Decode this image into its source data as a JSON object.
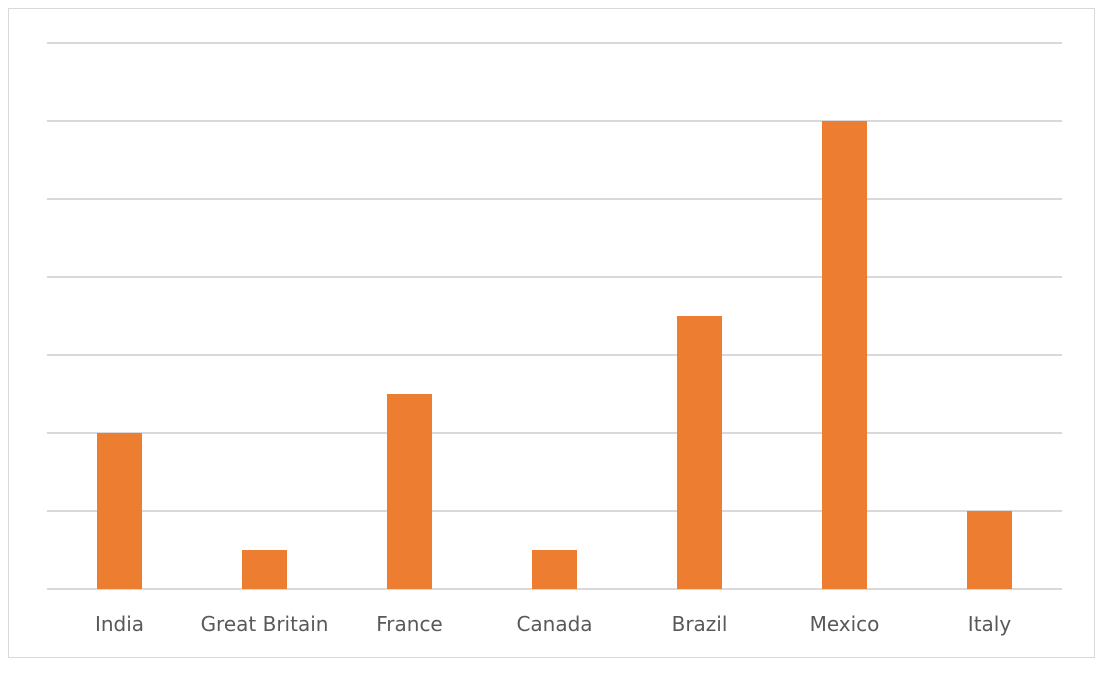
{
  "chart_data": {
    "type": "bar",
    "categories": [
      "India",
      "Great Britain",
      "France",
      "Canada",
      "Brazil",
      "Mexico",
      "Italy"
    ],
    "values": [
      4,
      1,
      5,
      1,
      7,
      12,
      2
    ],
    "title": "",
    "xlabel": "",
    "ylabel": "",
    "ylim": [
      0,
      14
    ],
    "gridlines": true,
    "y_tick_labels_shown": false,
    "legend": "none",
    "bar_color": "#ed7d31",
    "grid_color": "#d9d9d9",
    "label_color": "#595959"
  }
}
